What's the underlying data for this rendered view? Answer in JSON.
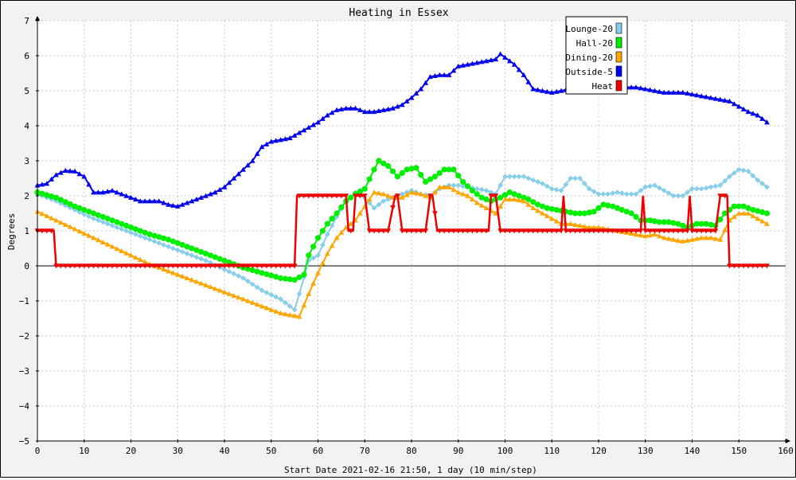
{
  "chart_data": {
    "type": "line",
    "title": "Heating in Essex",
    "xlabel": "Start Date 2021-02-16 21:50, 1 day (10 min/step)",
    "ylabel": "Degrees",
    "xlim": [
      0,
      160
    ],
    "ylim": [
      -5,
      7
    ],
    "x_ticks": [
      0,
      10,
      20,
      30,
      40,
      50,
      60,
      70,
      80,
      90,
      100,
      110,
      120,
      130,
      140,
      150,
      160
    ],
    "y_ticks": [
      -5,
      -4,
      -3,
      -2,
      -1,
      0,
      1,
      2,
      3,
      4,
      5,
      6,
      7
    ],
    "grid": true,
    "legend_position": "top-right",
    "series": [
      {
        "name": "Outside-5",
        "color": "#0000ee",
        "marker": "triangle",
        "points": [
          [
            0,
            2.3
          ],
          [
            2,
            2.35
          ],
          [
            4,
            2.6
          ],
          [
            6,
            2.72
          ],
          [
            8,
            2.7
          ],
          [
            10,
            2.55
          ],
          [
            12,
            2.1
          ],
          [
            14,
            2.1
          ],
          [
            16,
            2.15
          ],
          [
            18,
            2.05
          ],
          [
            20,
            1.95
          ],
          [
            22,
            1.85
          ],
          [
            24,
            1.85
          ],
          [
            26,
            1.85
          ],
          [
            28,
            1.75
          ],
          [
            30,
            1.7
          ],
          [
            32,
            1.8
          ],
          [
            34,
            1.9
          ],
          [
            36,
            2.0
          ],
          [
            38,
            2.1
          ],
          [
            40,
            2.25
          ],
          [
            42,
            2.5
          ],
          [
            44,
            2.75
          ],
          [
            46,
            3.0
          ],
          [
            48,
            3.4
          ],
          [
            50,
            3.55
          ],
          [
            52,
            3.6
          ],
          [
            54,
            3.65
          ],
          [
            56,
            3.8
          ],
          [
            58,
            3.95
          ],
          [
            60,
            4.1
          ],
          [
            62,
            4.3
          ],
          [
            64,
            4.45
          ],
          [
            66,
            4.5
          ],
          [
            68,
            4.5
          ],
          [
            70,
            4.4
          ],
          [
            72,
            4.4
          ],
          [
            74,
            4.45
          ],
          [
            76,
            4.5
          ],
          [
            78,
            4.6
          ],
          [
            80,
            4.8
          ],
          [
            82,
            5.05
          ],
          [
            84,
            5.4
          ],
          [
            86,
            5.45
          ],
          [
            88,
            5.45
          ],
          [
            90,
            5.7
          ],
          [
            92,
            5.75
          ],
          [
            94,
            5.8
          ],
          [
            96,
            5.85
          ],
          [
            98,
            5.9
          ],
          [
            99,
            6.05
          ],
          [
            100,
            5.95
          ],
          [
            102,
            5.75
          ],
          [
            104,
            5.45
          ],
          [
            106,
            5.05
          ],
          [
            108,
            5.0
          ],
          [
            110,
            4.95
          ],
          [
            112,
            5.0
          ],
          [
            114,
            5.05
          ],
          [
            116,
            5.0
          ],
          [
            118,
            5.05
          ],
          [
            120,
            5.1
          ],
          [
            122,
            5.05
          ],
          [
            124,
            5.05
          ],
          [
            126,
            5.1
          ],
          [
            128,
            5.1
          ],
          [
            130,
            5.05
          ],
          [
            132,
            5.0
          ],
          [
            134,
            4.95
          ],
          [
            136,
            4.95
          ],
          [
            138,
            4.95
          ],
          [
            140,
            4.9
          ],
          [
            142,
            4.85
          ],
          [
            144,
            4.8
          ],
          [
            146,
            4.75
          ],
          [
            148,
            4.7
          ],
          [
            150,
            4.55
          ],
          [
            152,
            4.4
          ],
          [
            154,
            4.3
          ],
          [
            156,
            4.1
          ]
        ]
      },
      {
        "name": "Lounge-20",
        "color": "#87ceeb",
        "marker": "diamond",
        "points": [
          [
            0,
            2.05
          ],
          [
            4,
            1.85
          ],
          [
            8,
            1.6
          ],
          [
            12,
            1.35
          ],
          [
            16,
            1.15
          ],
          [
            20,
            0.95
          ],
          [
            24,
            0.75
          ],
          [
            28,
            0.55
          ],
          [
            32,
            0.35
          ],
          [
            36,
            0.15
          ],
          [
            40,
            -0.1
          ],
          [
            44,
            -0.35
          ],
          [
            48,
            -0.7
          ],
          [
            52,
            -0.95
          ],
          [
            55,
            -1.25
          ],
          [
            56,
            -0.8
          ],
          [
            58,
            0.15
          ],
          [
            60,
            0.3
          ],
          [
            62,
            0.9
          ],
          [
            64,
            1.4
          ],
          [
            66,
            1.85
          ],
          [
            68,
            2.1
          ],
          [
            70,
            1.95
          ],
          [
            72,
            1.65
          ],
          [
            74,
            1.85
          ],
          [
            76,
            1.95
          ],
          [
            78,
            2.05
          ],
          [
            80,
            2.15
          ],
          [
            82,
            2.05
          ],
          [
            84,
            2.0
          ],
          [
            86,
            2.2
          ],
          [
            88,
            2.3
          ],
          [
            90,
            2.3
          ],
          [
            92,
            2.25
          ],
          [
            94,
            2.2
          ],
          [
            96,
            2.15
          ],
          [
            98,
            2.05
          ],
          [
            100,
            2.55
          ],
          [
            102,
            2.55
          ],
          [
            104,
            2.55
          ],
          [
            106,
            2.45
          ],
          [
            108,
            2.35
          ],
          [
            110,
            2.2
          ],
          [
            112,
            2.15
          ],
          [
            114,
            2.5
          ],
          [
            116,
            2.5
          ],
          [
            118,
            2.2
          ],
          [
            120,
            2.05
          ],
          [
            122,
            2.05
          ],
          [
            124,
            2.1
          ],
          [
            126,
            2.05
          ],
          [
            128,
            2.05
          ],
          [
            130,
            2.25
          ],
          [
            132,
            2.3
          ],
          [
            134,
            2.15
          ],
          [
            136,
            2.0
          ],
          [
            138,
            2.0
          ],
          [
            140,
            2.2
          ],
          [
            142,
            2.2
          ],
          [
            144,
            2.25
          ],
          [
            146,
            2.3
          ],
          [
            148,
            2.55
          ],
          [
            150,
            2.75
          ],
          [
            152,
            2.7
          ],
          [
            154,
            2.45
          ],
          [
            156,
            2.25
          ]
        ]
      },
      {
        "name": "Hall-20",
        "color": "#00ee00",
        "marker": "circle",
        "points": [
          [
            0,
            2.1
          ],
          [
            4,
            1.95
          ],
          [
            8,
            1.7
          ],
          [
            12,
            1.5
          ],
          [
            16,
            1.3
          ],
          [
            20,
            1.1
          ],
          [
            24,
            0.9
          ],
          [
            28,
            0.75
          ],
          [
            32,
            0.55
          ],
          [
            36,
            0.35
          ],
          [
            40,
            0.15
          ],
          [
            44,
            -0.05
          ],
          [
            48,
            -0.2
          ],
          [
            52,
            -0.35
          ],
          [
            55,
            -0.4
          ],
          [
            57,
            -0.25
          ],
          [
            58,
            0.3
          ],
          [
            60,
            0.8
          ],
          [
            62,
            1.2
          ],
          [
            64,
            1.5
          ],
          [
            66,
            1.85
          ],
          [
            68,
            2.05
          ],
          [
            70,
            2.2
          ],
          [
            72,
            2.75
          ],
          [
            73,
            3.0
          ],
          [
            75,
            2.85
          ],
          [
            77,
            2.55
          ],
          [
            79,
            2.75
          ],
          [
            81,
            2.8
          ],
          [
            83,
            2.4
          ],
          [
            85,
            2.55
          ],
          [
            87,
            2.75
          ],
          [
            89,
            2.75
          ],
          [
            91,
            2.4
          ],
          [
            93,
            2.15
          ],
          [
            95,
            1.95
          ],
          [
            97,
            1.85
          ],
          [
            99,
            1.95
          ],
          [
            101,
            2.1
          ],
          [
            103,
            2.0
          ],
          [
            105,
            1.9
          ],
          [
            107,
            1.75
          ],
          [
            109,
            1.65
          ],
          [
            111,
            1.6
          ],
          [
            113,
            1.55
          ],
          [
            115,
            1.5
          ],
          [
            117,
            1.5
          ],
          [
            119,
            1.55
          ],
          [
            121,
            1.75
          ],
          [
            123,
            1.7
          ],
          [
            125,
            1.6
          ],
          [
            127,
            1.5
          ],
          [
            129,
            1.3
          ],
          [
            131,
            1.3
          ],
          [
            133,
            1.25
          ],
          [
            135,
            1.25
          ],
          [
            137,
            1.2
          ],
          [
            139,
            1.1
          ],
          [
            141,
            1.2
          ],
          [
            143,
            1.2
          ],
          [
            145,
            1.15
          ],
          [
            147,
            1.5
          ],
          [
            149,
            1.7
          ],
          [
            151,
            1.7
          ],
          [
            153,
            1.6
          ],
          [
            156,
            1.5
          ]
        ]
      },
      {
        "name": "Dining-20",
        "color": "#ffa500",
        "marker": "triangle",
        "points": [
          [
            0,
            1.55
          ],
          [
            4,
            1.3
          ],
          [
            8,
            1.05
          ],
          [
            12,
            0.8
          ],
          [
            16,
            0.55
          ],
          [
            20,
            0.3
          ],
          [
            24,
            0.05
          ],
          [
            28,
            -0.15
          ],
          [
            32,
            -0.35
          ],
          [
            36,
            -0.55
          ],
          [
            40,
            -0.75
          ],
          [
            44,
            -0.95
          ],
          [
            48,
            -1.15
          ],
          [
            52,
            -1.35
          ],
          [
            56,
            -1.45
          ],
          [
            58,
            -0.8
          ],
          [
            60,
            -0.2
          ],
          [
            62,
            0.35
          ],
          [
            64,
            0.8
          ],
          [
            66,
            1.1
          ],
          [
            68,
            1.3
          ],
          [
            70,
            1.7
          ],
          [
            72,
            2.1
          ],
          [
            74,
            2.05
          ],
          [
            76,
            1.95
          ],
          [
            78,
            1.95
          ],
          [
            80,
            2.1
          ],
          [
            82,
            2.05
          ],
          [
            84,
            1.95
          ],
          [
            86,
            2.25
          ],
          [
            88,
            2.25
          ],
          [
            90,
            2.1
          ],
          [
            92,
            2.0
          ],
          [
            94,
            1.8
          ],
          [
            96,
            1.65
          ],
          [
            98,
            1.5
          ],
          [
            100,
            1.9
          ],
          [
            102,
            1.9
          ],
          [
            104,
            1.85
          ],
          [
            106,
            1.65
          ],
          [
            108,
            1.5
          ],
          [
            110,
            1.35
          ],
          [
            112,
            1.2
          ],
          [
            114,
            1.2
          ],
          [
            116,
            1.15
          ],
          [
            118,
            1.1
          ],
          [
            120,
            1.1
          ],
          [
            122,
            1.05
          ],
          [
            124,
            1.0
          ],
          [
            126,
            0.95
          ],
          [
            128,
            0.9
          ],
          [
            130,
            0.85
          ],
          [
            132,
            0.9
          ],
          [
            134,
            0.8
          ],
          [
            136,
            0.75
          ],
          [
            138,
            0.7
          ],
          [
            140,
            0.75
          ],
          [
            142,
            0.8
          ],
          [
            144,
            0.8
          ],
          [
            146,
            0.75
          ],
          [
            148,
            1.3
          ],
          [
            150,
            1.5
          ],
          [
            152,
            1.5
          ],
          [
            154,
            1.35
          ],
          [
            156,
            1.2
          ]
        ]
      },
      {
        "name": "Heat",
        "color": "#ee0000",
        "marker": "triangle-down",
        "points": [
          [
            0,
            1
          ],
          [
            3.5,
            1
          ],
          [
            4,
            0
          ],
          [
            55,
            0
          ],
          [
            55.5,
            2
          ],
          [
            66,
            2
          ],
          [
            66.5,
            1
          ],
          [
            67.5,
            1
          ],
          [
            68,
            2
          ],
          [
            70,
            2
          ],
          [
            71,
            1
          ],
          [
            75,
            1
          ],
          [
            76.5,
            2
          ],
          [
            77,
            2
          ],
          [
            78,
            1
          ],
          [
            83,
            1
          ],
          [
            84,
            2
          ],
          [
            84.5,
            2
          ],
          [
            85.5,
            1
          ],
          [
            96.5,
            1
          ],
          [
            97,
            2
          ],
          [
            98,
            2
          ],
          [
            99,
            1
          ],
          [
            112,
            1
          ],
          [
            112.5,
            2
          ],
          [
            113,
            1
          ],
          [
            129,
            1
          ],
          [
            129.5,
            2
          ],
          [
            130,
            1
          ],
          [
            139,
            1
          ],
          [
            139.5,
            2
          ],
          [
            140,
            1
          ],
          [
            145,
            1
          ],
          [
            146,
            2
          ],
          [
            147.5,
            2
          ],
          [
            148,
            0
          ],
          [
            156,
            0
          ]
        ]
      }
    ]
  }
}
